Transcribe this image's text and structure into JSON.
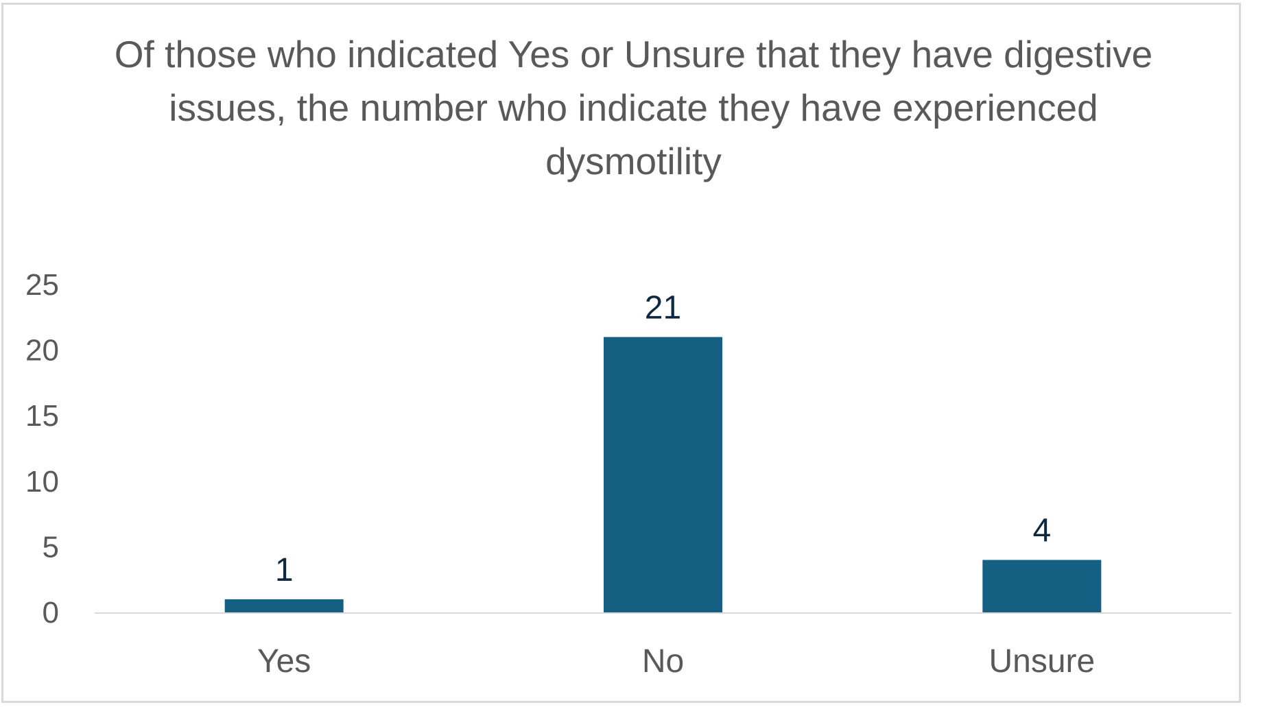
{
  "chart_data": {
    "type": "bar",
    "title": "Of those who indicated Yes or Unsure that they have digestive issues, the number who indicate they have experienced dysmotility",
    "xlabel": "",
    "ylabel": "",
    "categories": [
      "Yes",
      "No",
      "Unsure"
    ],
    "values": [
      1,
      21,
      4
    ],
    "data_labels": [
      "1",
      "21",
      "4"
    ],
    "ylim": [
      0,
      25
    ],
    "yticks": [
      0,
      5,
      10,
      15,
      20,
      25
    ],
    "ytick_labels": [
      "0",
      "5",
      "10",
      "15",
      "20",
      "25"
    ],
    "grid": false,
    "legend": "none",
    "bar_color": "#156082",
    "data_label_color": "#0e2841",
    "text_color": "#595959",
    "axis_color": "#d9d9d9"
  }
}
